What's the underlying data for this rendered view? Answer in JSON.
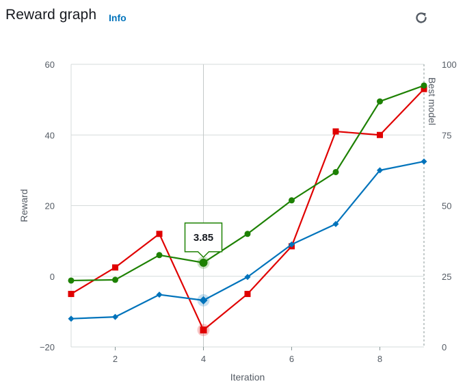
{
  "header": {
    "title": "Reward graph",
    "info_label": "Info",
    "refresh_icon": "refresh-icon"
  },
  "chart_data": {
    "type": "line",
    "xlabel": "Iteration",
    "ylabel": "Reward",
    "y2label": "Best model",
    "xlim": [
      1,
      9
    ],
    "ylim": [
      -20,
      60
    ],
    "y2lim": [
      0,
      100
    ],
    "x_ticks": [
      2,
      4,
      6,
      8
    ],
    "y_ticks": [
      -20,
      0,
      20,
      40,
      60
    ],
    "y2_ticks": [
      0,
      25,
      50,
      75,
      100
    ],
    "grid": true,
    "best_model_iteration": 9,
    "series": [
      {
        "color": "#e00000",
        "marker": "square",
        "x": [
          1,
          2,
          3,
          4,
          5,
          6,
          7,
          8,
          9
        ],
        "y": [
          -5,
          2.5,
          12,
          -15.2,
          -5,
          8.5,
          41,
          40,
          53
        ]
      },
      {
        "color": "#1d8102",
        "marker": "circle",
        "x": [
          1,
          2,
          3,
          4,
          5,
          6,
          7,
          8,
          9
        ],
        "y": [
          -1.2,
          -1,
          6,
          3.85,
          12,
          21.5,
          29.5,
          49.5,
          54
        ]
      },
      {
        "color": "#0073bb",
        "marker": "diamond",
        "x": [
          1,
          2,
          3,
          4,
          5,
          6,
          7,
          8,
          9
        ],
        "y": [
          -12,
          -11.5,
          -5.2,
          -6.8,
          -0.2,
          9,
          14.8,
          30,
          32.5
        ]
      }
    ],
    "hover": {
      "iteration": 4,
      "series_index": 1,
      "label": "3.85"
    }
  }
}
